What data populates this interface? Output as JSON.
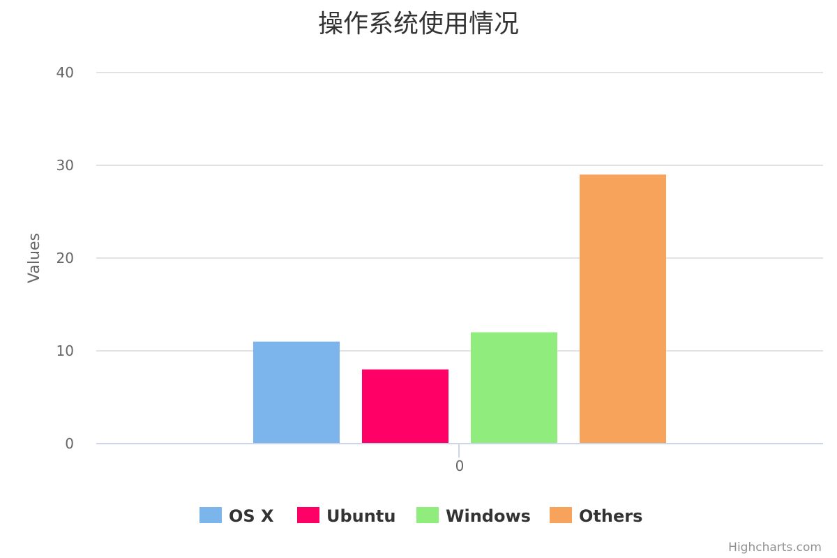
{
  "chart_data": {
    "type": "bar",
    "title": "操作系统使用情况",
    "xlabel": "",
    "ylabel": "Values",
    "categories": [
      "0"
    ],
    "ylim": [
      0,
      40
    ],
    "yticks": [
      0,
      10,
      20,
      30,
      40
    ],
    "grid": true,
    "legend_position": "bottom-center",
    "series": [
      {
        "name": "OS X",
        "values": [
          11
        ],
        "color": "#7cb5ec"
      },
      {
        "name": "Ubuntu",
        "values": [
          8
        ],
        "color": "#ff0066"
      },
      {
        "name": "Windows",
        "values": [
          12
        ],
        "color": "#90ed7d"
      },
      {
        "name": "Others",
        "values": [
          29
        ],
        "color": "#f7a35c"
      }
    ]
  },
  "credits": "Highcharts.com"
}
